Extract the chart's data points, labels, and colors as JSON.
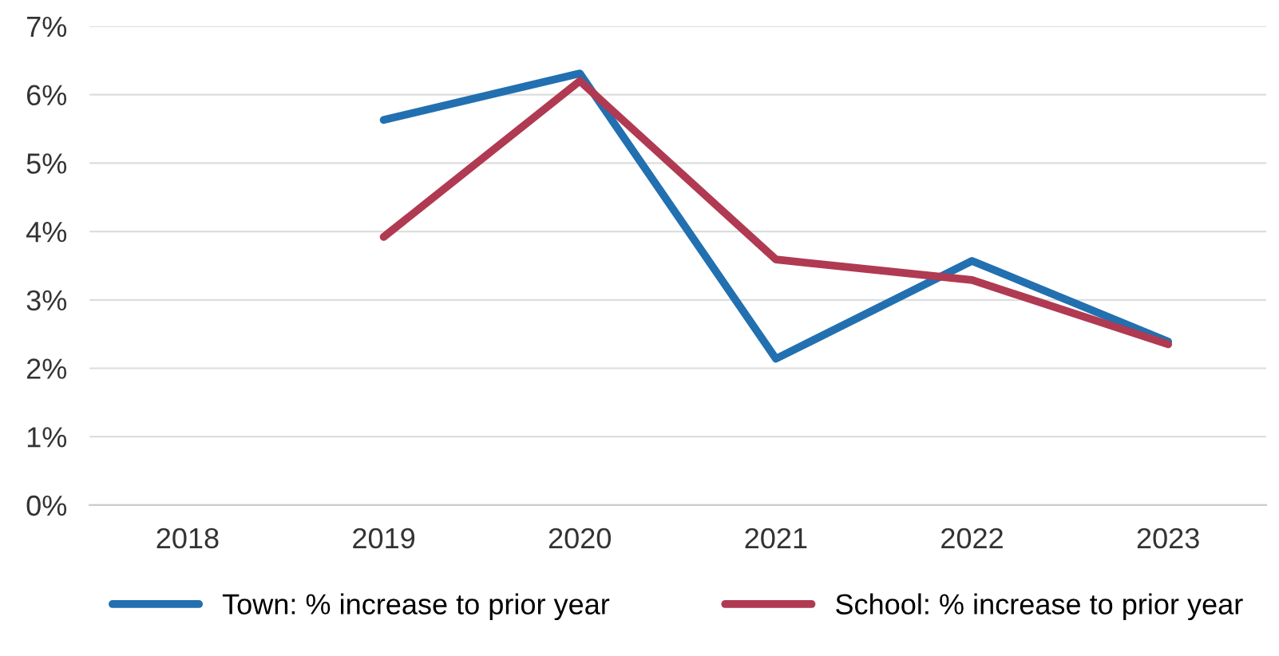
{
  "chart_data": {
    "type": "line",
    "categories": [
      "2018",
      "2019",
      "2020",
      "2021",
      "2022",
      "2023"
    ],
    "series": [
      {
        "name": "Town: % increase to prior year",
        "color": "#2270b0",
        "values": [
          null,
          5.63,
          6.31,
          2.14,
          3.57,
          2.39
        ]
      },
      {
        "name": "School: % increase to prior year",
        "color": "#b03a52",
        "values": [
          null,
          3.92,
          6.2,
          3.59,
          3.29,
          2.35
        ]
      }
    ],
    "ylim": [
      0,
      7
    ],
    "yticks": [
      {
        "value": 0,
        "label": "0%"
      },
      {
        "value": 1,
        "label": "1%"
      },
      {
        "value": 2,
        "label": "2%"
      },
      {
        "value": 3,
        "label": "3%"
      },
      {
        "value": 4,
        "label": "4%"
      },
      {
        "value": 5,
        "label": "5%"
      },
      {
        "value": 6,
        "label": "6%"
      },
      {
        "value": 7,
        "label": "7%"
      }
    ],
    "grid": "y",
    "legend": "bottom",
    "marker": "none",
    "line_style": "solid"
  }
}
